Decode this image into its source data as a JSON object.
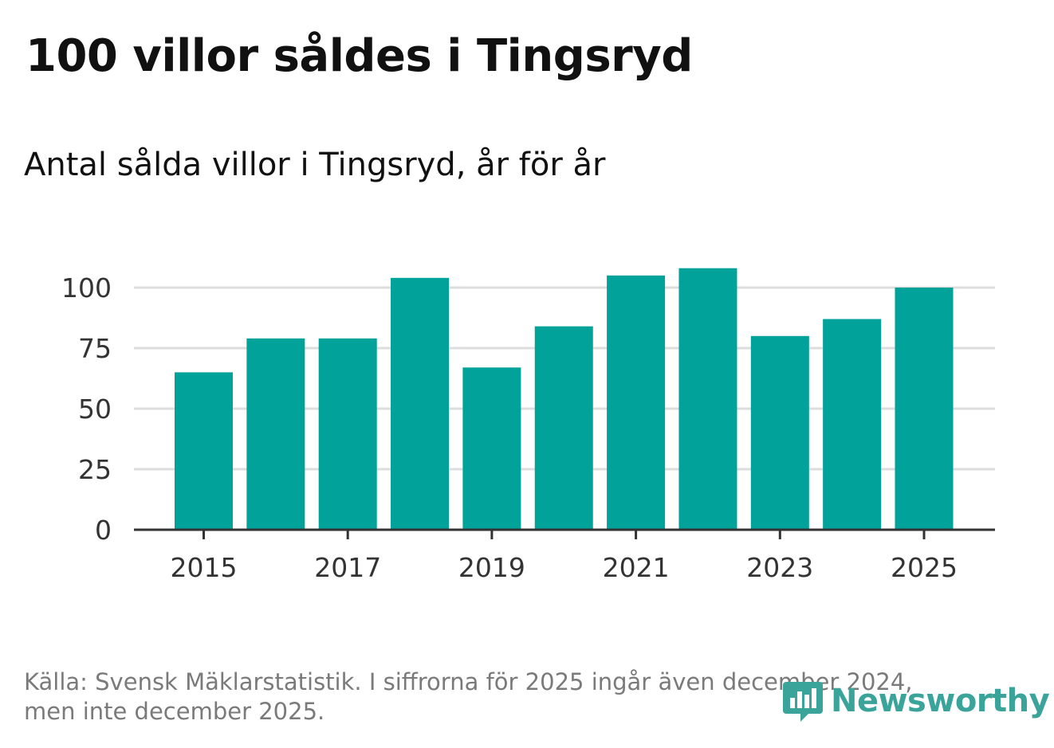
{
  "title": "100 villor såldes i Tingsryd",
  "subtitle": "Antal sålda villor i Tingsryd, år för år",
  "footer": {
    "source_line1": "Källa: Svensk Mäklarstatistik. I siffrorna för 2025 ingår även december 2024,",
    "source_line2": "men inte december 2025."
  },
  "logo": {
    "text": "Newsworthy",
    "icon": "chart-bubble-icon"
  },
  "colors": {
    "bar": "#00a29a",
    "grid": "#dddddd",
    "axis": "#333333",
    "logo": "#3aa39a"
  },
  "chart_data": {
    "type": "bar",
    "title": "Antal sålda villor i Tingsryd, år för år",
    "xlabel": "",
    "ylabel": "",
    "categories": [
      "2015",
      "2016",
      "2017",
      "2018",
      "2019",
      "2020",
      "2021",
      "2022",
      "2023",
      "2024",
      "2025"
    ],
    "values": [
      65,
      79,
      79,
      104,
      67,
      84,
      105,
      108,
      80,
      87,
      100
    ],
    "x_tick_labels": [
      "2015",
      "2017",
      "2019",
      "2021",
      "2023",
      "2025"
    ],
    "y_ticks": [
      0,
      25,
      50,
      75,
      100
    ],
    "ylim": [
      0,
      112
    ],
    "grid": true,
    "legend": "none"
  }
}
